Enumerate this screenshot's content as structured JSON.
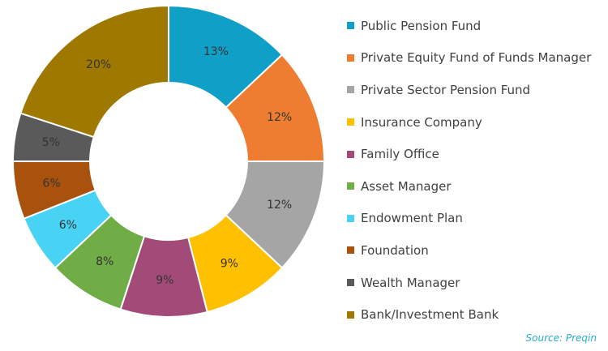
{
  "chart_data": {
    "type": "pie",
    "categories": [
      "Public Pension Fund",
      "Private Equity Fund of Funds Manager",
      "Private Sector Pension Fund",
      "Insurance Company",
      "Family Office",
      "Asset Manager",
      "Endowment Plan",
      "Foundation",
      "Wealth Manager",
      "Bank/Investment Bank"
    ],
    "values": [
      13,
      12,
      12,
      9,
      9,
      8,
      6,
      6,
      5,
      20
    ],
    "labels": [
      "13%",
      "12%",
      "12%",
      "9%",
      "9%",
      "8%",
      "6%",
      "6%",
      "5%",
      "20%"
    ],
    "colors": [
      "#0f9fc7",
      "#ee7d31",
      "#a5a5a5",
      "#ffc000",
      "#a24b79",
      "#70ad47",
      "#48d3f5",
      "#a9520e",
      "#5a5a5a",
      "#9f7800"
    ],
    "donut": true,
    "legend_position": "right",
    "source": "Source: Preqin"
  }
}
